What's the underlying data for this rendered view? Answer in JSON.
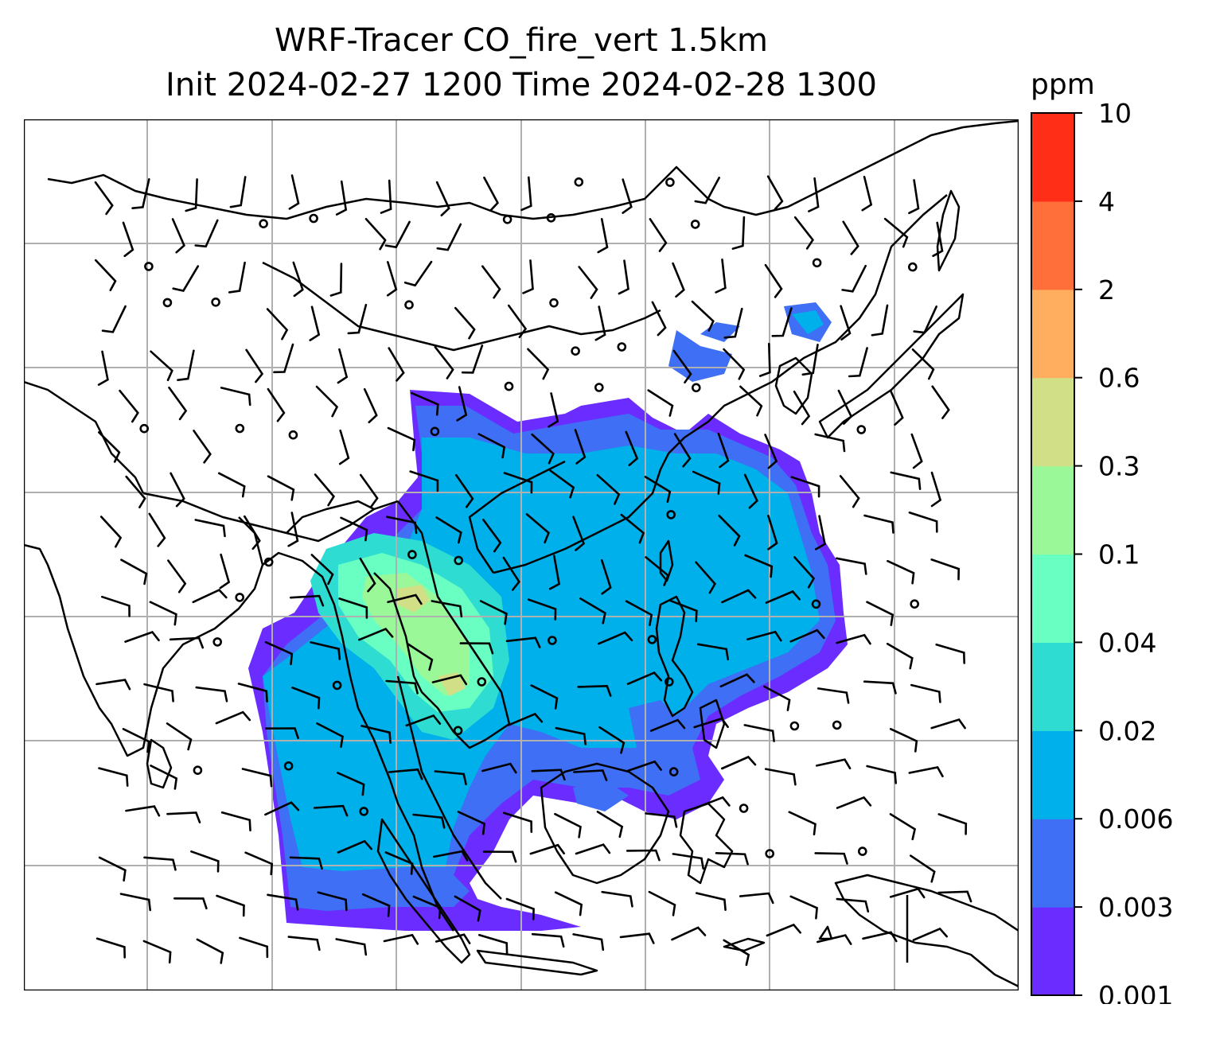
{
  "title": {
    "line1": "WRF-Tracer CO_fire_vert 1.5km",
    "line2": "Init 2024-02-27 1200 Time 2024-02-28 1300"
  },
  "colorbar": {
    "unit": "ppm",
    "levels": [
      "0.001",
      "0.003",
      "0.006",
      "0.02",
      "0.04",
      "0.1",
      "0.3",
      "0.6",
      "2",
      "4",
      "10"
    ],
    "colors": [
      "#6a2cff",
      "#3e6ff5",
      "#00b0ea",
      "#2edcd2",
      "#6affc2",
      "#9af899",
      "#d1e086",
      "#ffad5f",
      "#ff6f3a",
      "#ff2e17"
    ]
  },
  "map": {
    "gridlines": true,
    "coastlines": true,
    "wind_barbs": true,
    "frame": "#000000",
    "grid_color": "#b0b0b0"
  }
}
